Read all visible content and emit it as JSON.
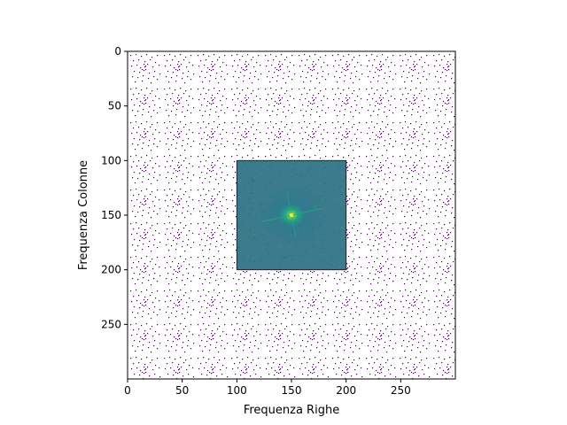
{
  "chart_data": {
    "type": "heatmap",
    "title": "",
    "xlabel": "Frequenza Righe",
    "ylabel": "Frequenza Colonne",
    "xlim": [
      0,
      300
    ],
    "ylim": [
      300,
      0
    ],
    "x_ticks": [
      0,
      50,
      100,
      150,
      200,
      250
    ],
    "y_ticks": [
      0,
      50,
      100,
      150,
      200,
      250
    ],
    "grid": false,
    "legend": "none",
    "image": {
      "width": 300,
      "height": 300,
      "background_color": "#ffffff",
      "pattern_description": "sparse masked pattern with purple dots repeated in tiles",
      "pattern_dot_color": "#440154",
      "pattern_period": [
        31,
        31
      ]
    },
    "inset": {
      "x_range": [
        100,
        200
      ],
      "y_range": [
        100,
        200
      ],
      "colormap": "viridis",
      "background_color": "#3b7b8c",
      "peak_center": [
        150,
        150
      ],
      "peak_color": "#fde725"
    }
  }
}
